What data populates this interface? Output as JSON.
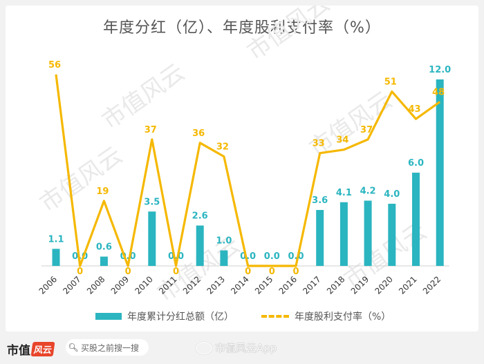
{
  "title": "年度分红（亿）、年度股利支付率（%）",
  "watermark": "市值风云",
  "chart_data": {
    "type": "bar+line",
    "categories": [
      "2006",
      "2007",
      "2008",
      "2009",
      "2010",
      "2011",
      "2012",
      "2013",
      "2014",
      "2015",
      "2016",
      "2017",
      "2018",
      "2019",
      "2020",
      "2021",
      "2022"
    ],
    "series": [
      {
        "name": "年度累计分红总额（亿）",
        "type": "bar",
        "color": "#2bb5c0",
        "values": [
          1.1,
          0.0,
          0.6,
          0.0,
          3.5,
          0.0,
          2.6,
          1.0,
          0.0,
          0.0,
          0.0,
          3.6,
          4.1,
          4.2,
          4.0,
          6.0,
          12.0
        ],
        "labels": [
          "1.1",
          "0.0",
          "0.6",
          "0.0",
          "3.5",
          "0.0",
          "2.6",
          "1.0",
          "0.0",
          "0.0",
          "0.0",
          "3.6",
          "4.1",
          "4.2",
          "4.0",
          "6.0",
          "12.0"
        ]
      },
      {
        "name": "年度股利支付率（%）",
        "type": "line",
        "color": "#f5b800",
        "values": [
          56,
          0,
          19,
          0,
          37,
          0,
          36,
          32,
          0,
          0,
          0,
          33,
          34,
          37,
          51,
          43,
          48
        ],
        "labels": [
          "56",
          "0",
          "19",
          "0",
          "37",
          "0",
          "36",
          "32",
          "0",
          "0",
          "0",
          "33",
          "34",
          "37",
          "51",
          "43",
          "48"
        ]
      }
    ],
    "grid": false,
    "legend_position": "bottom"
  },
  "footer": {
    "brand_main": "市值",
    "brand_box": "风云",
    "search_placeholder": "买股之前搜一搜",
    "source": "市值风云App"
  }
}
